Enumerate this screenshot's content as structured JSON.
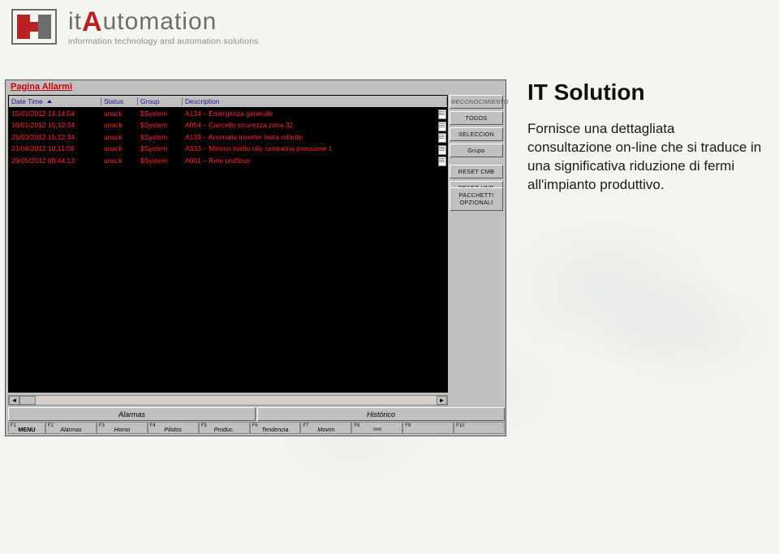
{
  "logo": {
    "brand_pre": "it",
    "brand_post": "utomation",
    "tagline": "information technology and automation solutions"
  },
  "copy": {
    "heading": "IT Solution",
    "body": "Fornisce una dettagliata consultazione on-line che si traduce in una significativa riduzione di fermi all'impianto produttivo."
  },
  "app": {
    "title": "Pagina Allarmi",
    "columns": [
      "Date Time",
      "Status",
      "Group",
      "Description"
    ],
    "rows": [
      {
        "dt": "15/01/2012 14:14:54",
        "status": "unack",
        "group": "$System",
        "desc": "A134 – Emergenza generale"
      },
      {
        "dt": "18/01/2012 15:12:34",
        "status": "unack",
        "group": "$System",
        "desc": "A054 – Cancello sicurezza zona 32"
      },
      {
        "dt": "25/03/2012 15:12:34",
        "status": "unack",
        "group": "$System",
        "desc": "A139 – Anomalia inverter testa rotante"
      },
      {
        "dt": "21/04/2012 10:11:59",
        "status": "unack",
        "group": "$System",
        "desc": "A333 – Minimo livello olio centralina pressione 1"
      },
      {
        "dt": "29/05/2012 08:44:13",
        "status": "unack",
        "group": "$System",
        "desc": "A001 – Rete profibus"
      }
    ],
    "row_color": "#ff2a2a",
    "grid_bg": "#000000",
    "header_bg": "#bfbfbf",
    "header_color": "#1a1a8a",
    "side": {
      "header": "RECONOCIMIENTO",
      "buttons": [
        "TODOS",
        "SELECCION",
        "Grupo",
        "RESET CMB",
        "RESET HND"
      ]
    },
    "pack_button": "PACCHETTI OPZIONALI",
    "bottom_buttons": [
      "Alarmas",
      "Histórico"
    ],
    "fkeys": [
      {
        "fn": "F1",
        "label": "MENU",
        "menu": true
      },
      {
        "fn": "F2",
        "label": "Alarmas"
      },
      {
        "fn": "F3",
        "label": "Horno"
      },
      {
        "fn": "F4",
        "label": "Pilotos"
      },
      {
        "fn": "F5",
        "label": "Produc."
      },
      {
        "fn": "F6",
        "label": "Tendencia"
      },
      {
        "fn": "F7",
        "label": "Movim"
      },
      {
        "fn": "F8",
        "label": "Imprimir",
        "printer": true
      },
      {
        "fn": "F9",
        "label": ""
      },
      {
        "fn": "F10",
        "label": ""
      }
    ]
  }
}
